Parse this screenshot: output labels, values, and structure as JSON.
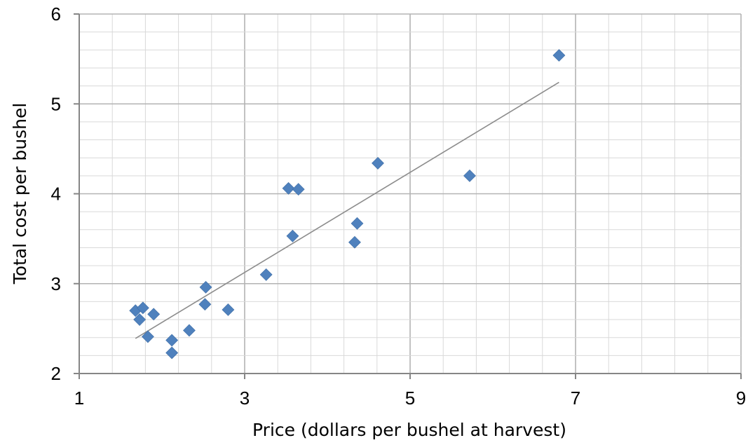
{
  "chart_data": {
    "type": "scatter",
    "xlabel": "Price (dollars per bushel at harvest)",
    "ylabel": "Total cost per bushel",
    "xlim": [
      1,
      9
    ],
    "ylim": [
      2,
      6
    ],
    "x_major_ticks": [
      1,
      3,
      5,
      7,
      9
    ],
    "y_major_ticks": [
      2,
      3,
      4,
      5,
      6
    ],
    "x_minor_step": 0.4,
    "y_minor_step": 0.2,
    "grid": true,
    "legend": "none",
    "marker": "diamond",
    "marker_color": "#4f81bd",
    "trendline": {
      "type": "linear",
      "color": "#8c8c8c",
      "x_from": 1.68,
      "x_to": 6.8,
      "y_from": 2.39,
      "y_to": 5.24
    },
    "points": [
      {
        "x": 1.68,
        "y": 2.7
      },
      {
        "x": 1.73,
        "y": 2.6
      },
      {
        "x": 1.77,
        "y": 2.73
      },
      {
        "x": 1.83,
        "y": 2.41
      },
      {
        "x": 1.9,
        "y": 2.66
      },
      {
        "x": 2.12,
        "y": 2.37
      },
      {
        "x": 2.12,
        "y": 2.23
      },
      {
        "x": 2.33,
        "y": 2.48
      },
      {
        "x": 2.52,
        "y": 2.77
      },
      {
        "x": 2.53,
        "y": 2.96
      },
      {
        "x": 2.8,
        "y": 2.71
      },
      {
        "x": 3.26,
        "y": 3.1
      },
      {
        "x": 3.53,
        "y": 4.06
      },
      {
        "x": 3.58,
        "y": 3.53
      },
      {
        "x": 3.65,
        "y": 4.05
      },
      {
        "x": 4.33,
        "y": 3.46
      },
      {
        "x": 4.36,
        "y": 3.67
      },
      {
        "x": 4.61,
        "y": 4.34
      },
      {
        "x": 5.72,
        "y": 4.2
      },
      {
        "x": 6.8,
        "y": 5.54
      }
    ]
  }
}
